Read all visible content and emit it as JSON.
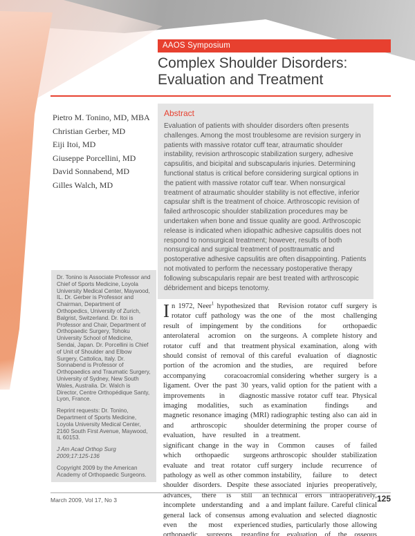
{
  "colors": {
    "accent_red": "#e7402f",
    "abstract_bg": "#e4e4e4",
    "sidebar_bg": "#e1e1e1",
    "header_gray": "#a6a6a6",
    "coral_wedge": "#f0a078"
  },
  "header": {
    "banner_label": "AAOS Symposium",
    "title_line1": "Complex Shoulder Disorders:",
    "title_line2": "Evaluation and Treatment"
  },
  "authors": [
    "Pietro M. Tonino, MD, MBA",
    "Christian Gerber, MD",
    "Eiji Itoi, MD",
    "Giuseppe Porcellini, MD",
    "David Sonnabend, MD",
    "Gilles Walch, MD"
  ],
  "abstract": {
    "heading": "Abstract",
    "text": "Evaluation of patients with shoulder disorders often presents challenges. Among the most troublesome are revision surgery in patients with massive rotator cuff tear, atraumatic shoulder instability, revision arthroscopic stabilization surgery, adhesive capsulitis, and bicipital and subscapularis injuries. Determining functional status is critical before considering surgical options in the patient with massive rotator cuff tear. When nonsurgical treatment of atraumatic shoulder stability is not effective, inferior capsular shift is the treatment of choice. Arthroscopic revision of failed arthroscopic shoulder stabilization procedures may be undertaken when bone and tissue quality are good. Arthroscopic release is indicated when idiopathic adhesive capsulitis does not respond to nonsurgical treatment; however, results of both nonsurgical and surgical treatment of posttraumatic and postoperative adhesive capsulitis are often disappointing. Patients not motivated to perform the necessary postoperative therapy following subscapularis repair are best treated with arthroscopic débridement and biceps tenotomy."
  },
  "affiliations": {
    "bio": "Dr. Tonino is Associate Professor and Chief of Sports Medicine, Loyola University Medical Center, Maywood, IL. Dr. Gerber is Professor and Chairman, Department of Orthopedics, University of Zurich, Balgrist, Switzerland. Dr. Itoi is Professor and Chair, Department of Orthopaedic Surgery, Tohoku University School of Medicine, Sendai, Japan. Dr. Porcellini is Chief of Unit of Shoulder and Elbow Surgery, Cattolica, Italy. Dr. Sonnabend is Professor of Orthopaedics and Traumatic Surgery, University of Sydney, New South Wales, Australia. Dr. Walch is Director, Centre Orthopédique Santy, Lyon, France.",
    "reprint": "Reprint requests: Dr. Tonino, Department of Sports Medicine, Loyola University Medical Center, 2160 South First Avenue, Maywood, IL 60153.",
    "citation": "J Am Acad Orthop Surg 2009;17:125-136",
    "copyright": "Copyright 2009 by the American Academy of Orthopaedic Surgeons."
  },
  "body": {
    "col1": {
      "dropcap": "I",
      "lead": "n 1972, Neer",
      "sup": "1",
      "rest": " hypothesized that rotator cuff pathology was the result of impingement by the anterolateral acromion on the rotator cuff and that treatment should consist of removal of this portion of the acromion and the accompanying coracoacromial ligament. Over the past 30 years, improvements in diagnostic imaging modalities, such as magnetic resonance imaging (MRI) and arthroscopic shoulder evaluation, have resulted in a significant change in the way in which orthopaedic surgeons evaluate and treat rotator cuff pathology as well as other common shoulder disorders. Despite these advances, there is still an incomplete understanding and a general lack of consensus among even the most experienced orthopaedic surgeons regarding treatment of complex shoulder conditions."
    },
    "col2": {
      "para1": "Revision rotator cuff surgery is one of the most challenging conditions for orthopaedic surgeons. A complete history and physical examination, along with careful evaluation of diagnostic studies, are required before considering whether surgery is a valid option for the patient with a massive rotator cuff tear. Physical examination findings and radiographic testing also can aid in determining the proper course of treatment.",
      "para2": "Common causes of failed arthroscopic shoulder stabilization surgery include recurrence of instability, failure to detect associated injuries preoperatively, technical errors intraoperatively, and implant failure. Careful clinical evaluation and selected diagnostic studies, particularly those allowing for evaluation of the osseous anatomy, are important to"
    }
  },
  "footer": {
    "issue": "March 2009, Vol 17, No 3",
    "page_number": "125"
  }
}
